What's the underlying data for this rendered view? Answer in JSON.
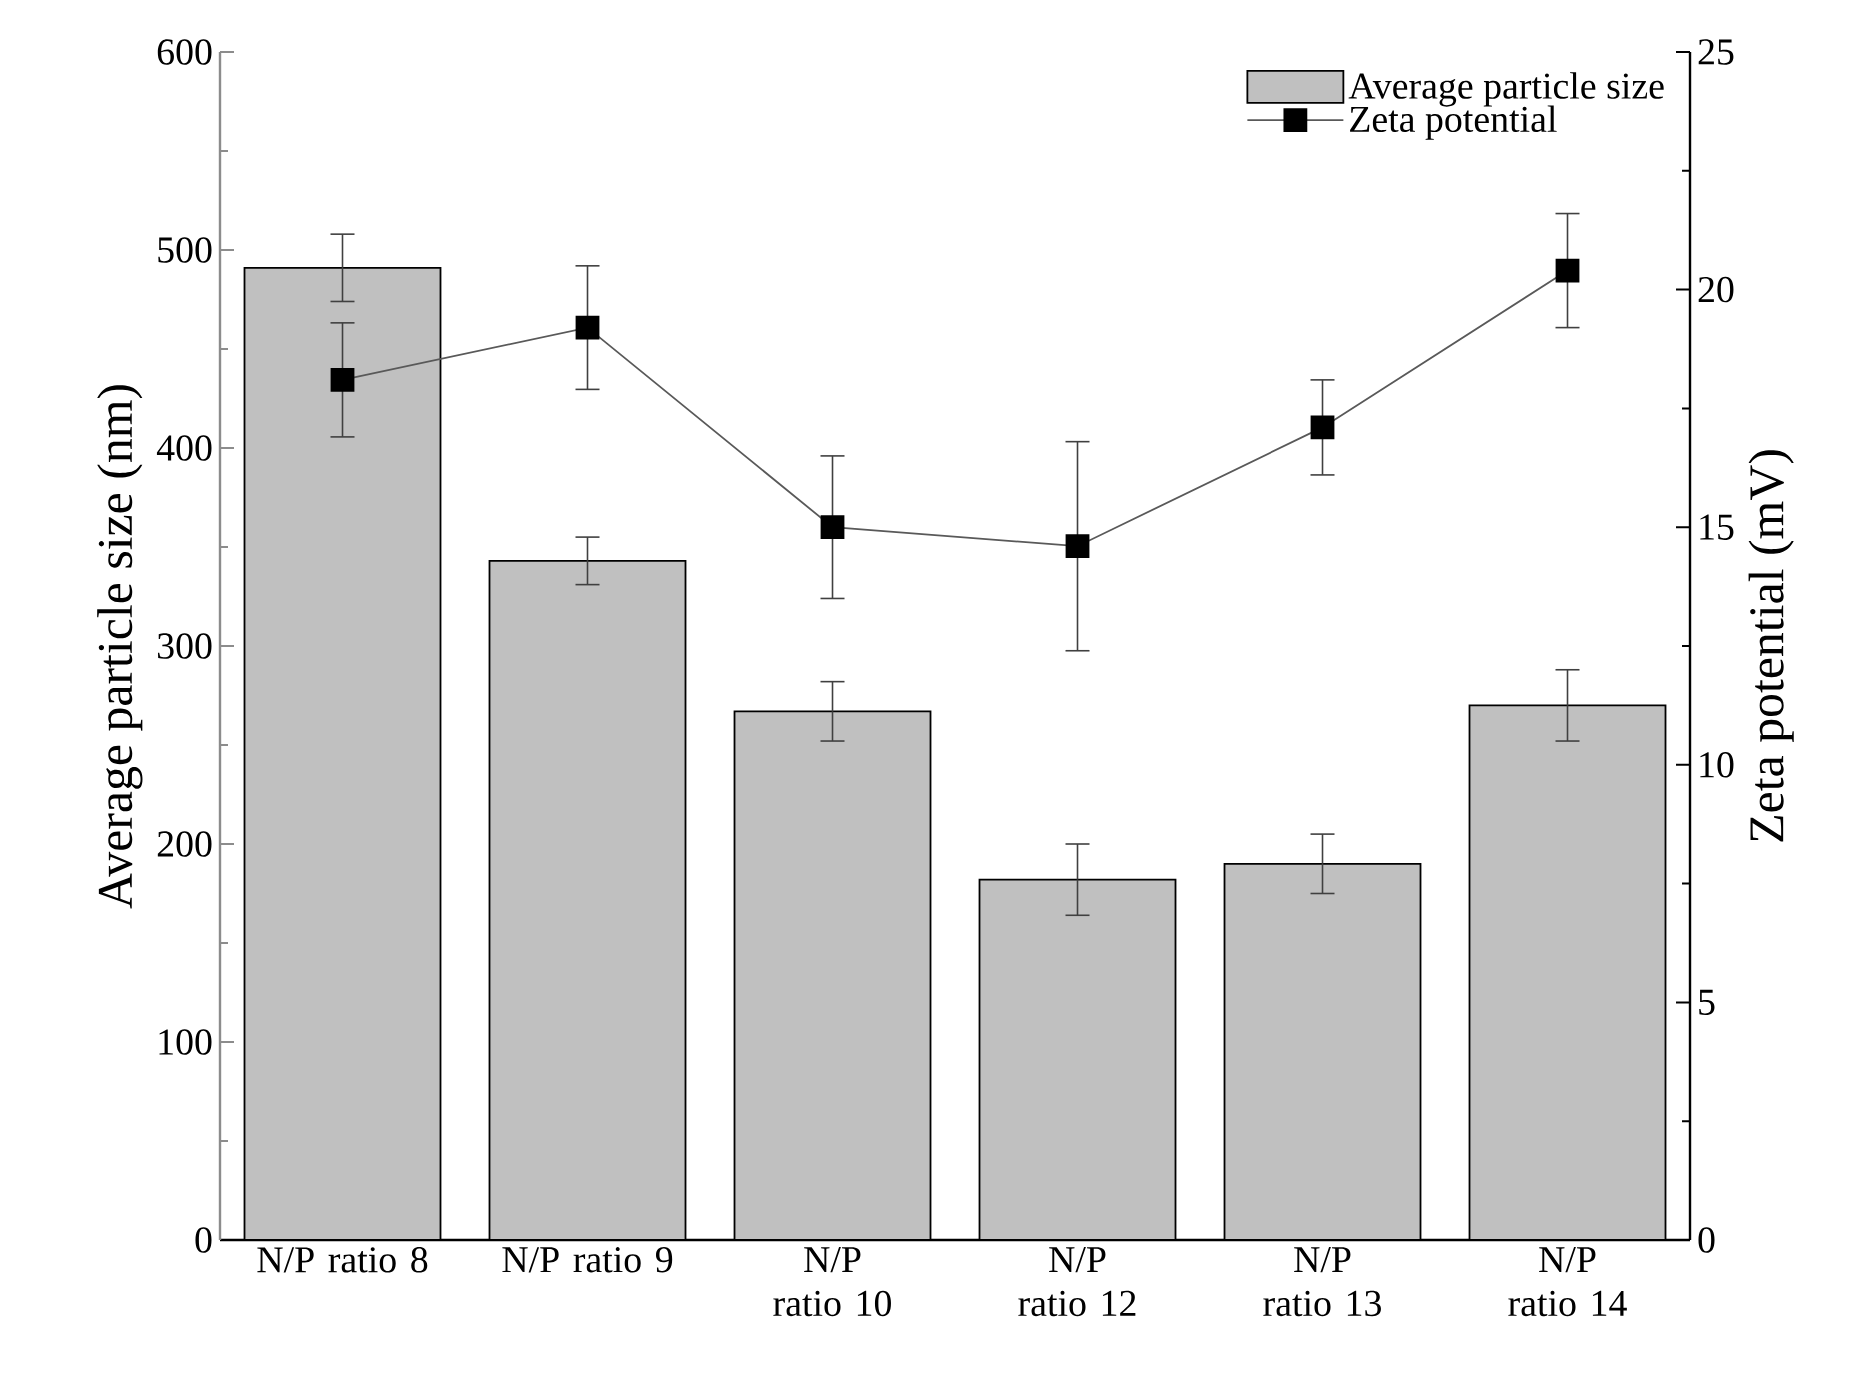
{
  "chart_data": {
    "type": "bar",
    "categories": [
      "N/P ratio 8",
      "N/P ratio 9",
      "N/P ratio 10",
      "N/P ratio 12",
      "N/P ratio 13",
      "N/P ratio 14"
    ],
    "series": [
      {
        "name": "Average particle size",
        "color": "#c0c0c0",
        "values": [
          491,
          343,
          267,
          182,
          190,
          270
        ],
        "errors": [
          17,
          12,
          15,
          18,
          15,
          18
        ]
      },
      {
        "name": "Zeta potential",
        "type": "line",
        "axis": "y2",
        "color": "#000000",
        "marker": "square",
        "values": [
          18.1,
          19.2,
          15.0,
          14.6,
          17.1,
          20.4
        ],
        "errors": [
          1.2,
          1.3,
          1.5,
          2.2,
          1.0,
          1.2
        ]
      }
    ],
    "ylabel": "Average particle size (nm)",
    "y2label": "Zeta potential (mV)",
    "ylim": [
      0,
      600
    ],
    "yticks": [
      0,
      100,
      200,
      300,
      400,
      500,
      600
    ],
    "y2lim": [
      0,
      25
    ],
    "y2ticks": [
      0,
      5,
      10,
      15,
      20,
      25
    ],
    "legend": "top right"
  }
}
